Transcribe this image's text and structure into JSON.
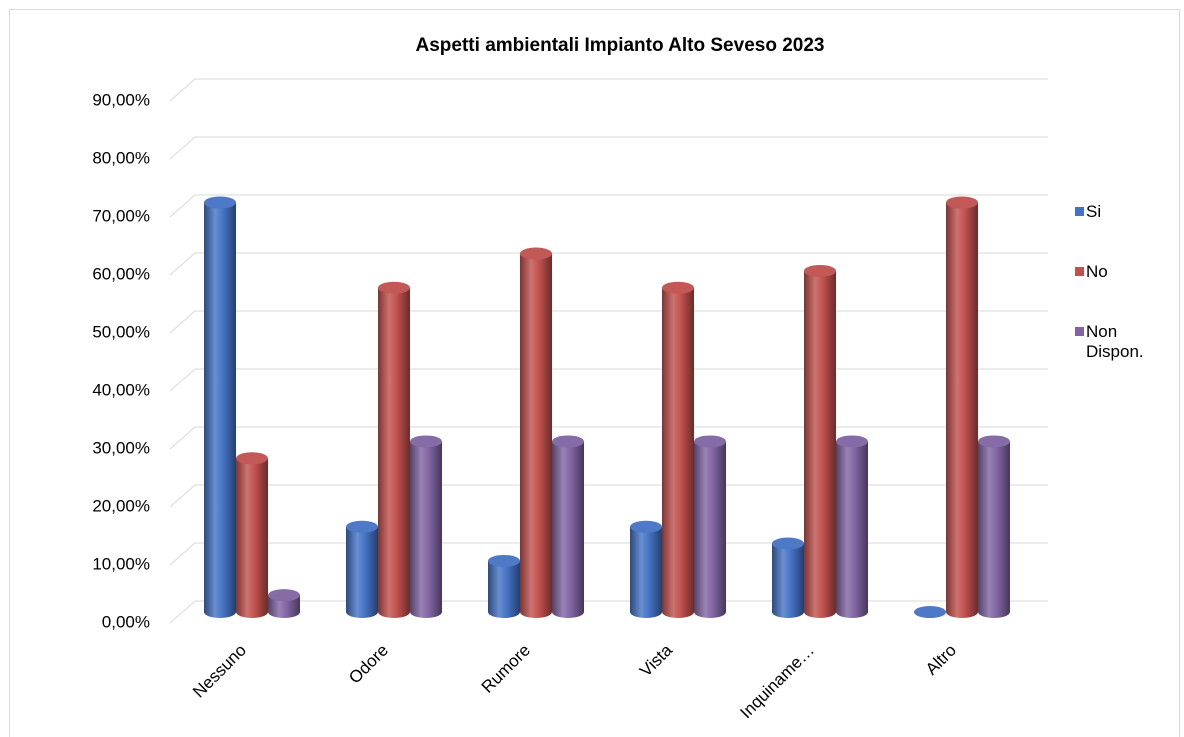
{
  "chart_data": {
    "type": "bar",
    "title": "Aspetti ambientali Impianto Alto Seveso 2023",
    "categories": [
      "Nessuno",
      "Odore",
      "Rumore",
      "Vista",
      "Inquiname…",
      "Altro"
    ],
    "series": [
      {
        "name": "Si",
        "color": "#4472c4",
        "values": [
          70.6,
          14.7,
          8.8,
          14.7,
          11.8,
          0
        ]
      },
      {
        "name": "No",
        "color": "#c0504d",
        "values": [
          26.5,
          55.9,
          61.8,
          55.9,
          58.8,
          70.6
        ]
      },
      {
        "name": "Non Dispon.",
        "color": "#8064a2",
        "values": [
          2.9,
          29.4,
          29.4,
          29.4,
          29.4,
          29.4
        ]
      }
    ],
    "ylim": [
      0,
      90
    ],
    "yticks": [
      {
        "value": 0,
        "label": "0,00%"
      },
      {
        "value": 10,
        "label": "10,00%"
      },
      {
        "value": 20,
        "label": "20,00%"
      },
      {
        "value": 30,
        "label": "30,00%"
      },
      {
        "value": 40,
        "label": "40,00%"
      },
      {
        "value": 50,
        "label": "50,00%"
      },
      {
        "value": 60,
        "label": "60,00%"
      },
      {
        "value": 70,
        "label": "70,00%"
      },
      {
        "value": 80,
        "label": "80,00%"
      },
      {
        "value": 90,
        "label": "90,00%"
      }
    ],
    "grid": true,
    "legend": "right"
  }
}
